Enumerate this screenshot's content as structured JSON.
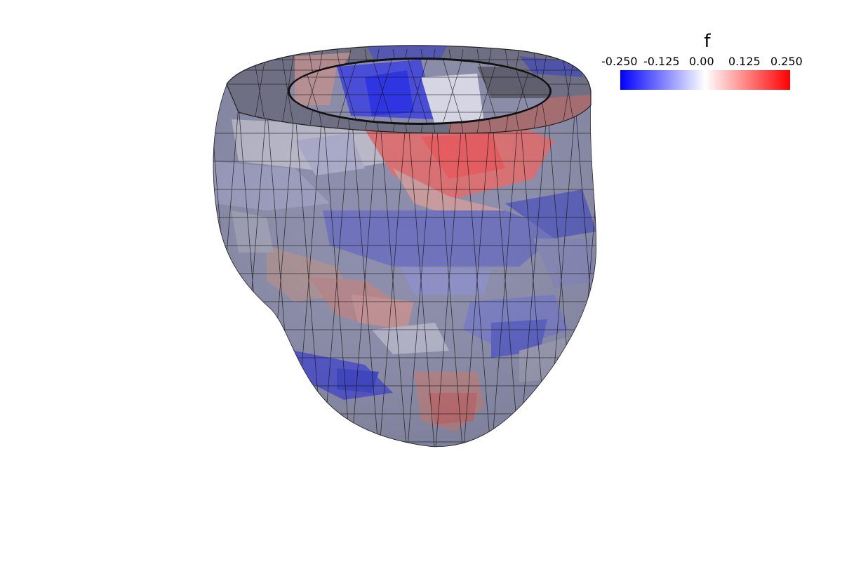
{
  "scalar_bar": {
    "title": "f",
    "tick_labels": [
      "-0.250",
      "-0.125",
      "0.00",
      "0.125",
      "0.250"
    ],
    "range": [
      -0.25,
      0.25
    ],
    "colormap": {
      "low": "#0000ff",
      "mid": "#ffffff",
      "high": "#ff0000"
    }
  },
  "mesh": {
    "edge_color": "#000000",
    "shell_base": "#8a8ca6"
  }
}
